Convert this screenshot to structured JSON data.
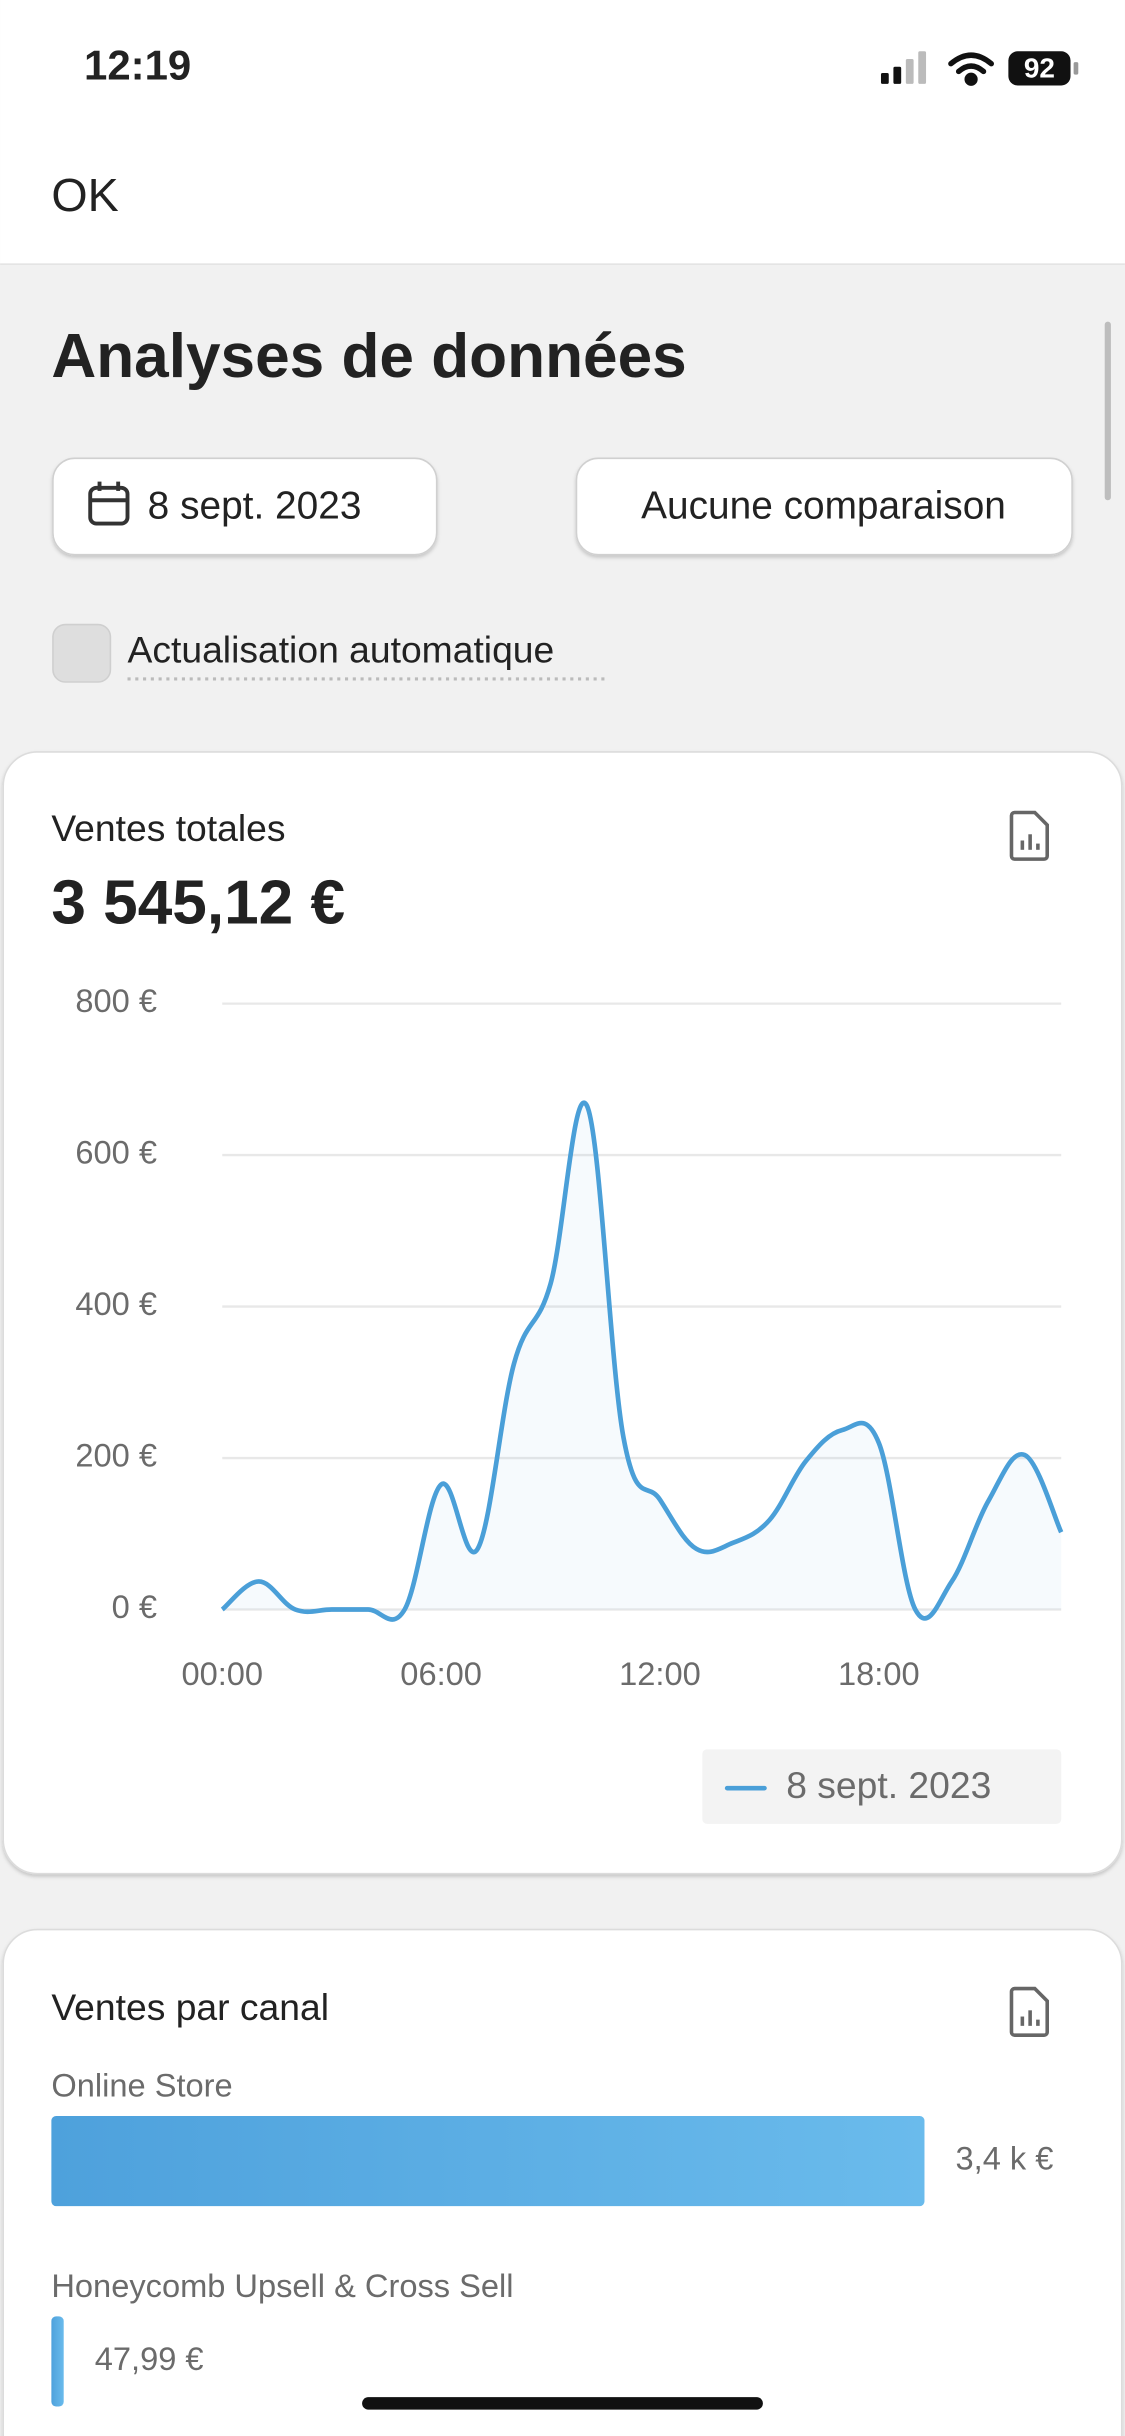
{
  "status_bar": {
    "time": "12:19",
    "battery": 92
  },
  "header": {
    "ok": "OK"
  },
  "page": {
    "title": "Analyses de données",
    "date_button": "8 sept. 2023",
    "comparison_button": "Aucune comparaison",
    "auto_refresh": "Actualisation automatique"
  },
  "chart_data": [
    {
      "type": "line",
      "title": "Ventes totales",
      "total": "3 545,12 €",
      "x": [
        0,
        1,
        2,
        3,
        4,
        5,
        6,
        7,
        8,
        9,
        10,
        11,
        12,
        13,
        14,
        15,
        16,
        17,
        18,
        19,
        20,
        21,
        22,
        23
      ],
      "xlim": [
        0,
        23
      ],
      "xticks": [
        {
          "value": 0,
          "label": "00:00"
        },
        {
          "value": 6,
          "label": "06:00"
        },
        {
          "value": 12,
          "label": "12:00"
        },
        {
          "value": 18,
          "label": "18:00"
        }
      ],
      "ylim": [
        0,
        800
      ],
      "yticks": [
        {
          "value": 0,
          "label": "0 €"
        },
        {
          "value": 200,
          "label": "200 €"
        },
        {
          "value": 400,
          "label": "400 €"
        },
        {
          "value": 600,
          "label": "600 €"
        },
        {
          "value": 800,
          "label": "800 €"
        }
      ],
      "grid": true,
      "series": [
        {
          "name": "8 sept. 2023",
          "color": "#4a9fd8",
          "values": [
            0,
            37,
            0,
            0,
            0,
            0,
            165,
            80,
            325,
            430,
            665,
            227,
            145,
            80,
            88,
            118,
            196,
            237,
            220,
            0,
            37,
            143,
            204,
            102
          ]
        }
      ]
    },
    {
      "type": "hbar",
      "title": "Ventes par canal",
      "categories": [
        "Online Store",
        "Honeycomb Upsell & Cross Sell"
      ],
      "values": [
        3400,
        47.99
      ],
      "value_labels": [
        "3,4 k €",
        "47,99 €"
      ],
      "color": "#58aae3"
    }
  ]
}
